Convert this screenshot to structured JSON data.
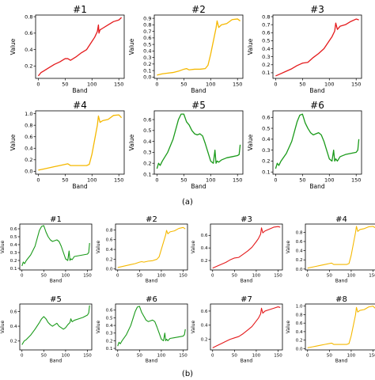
{
  "figure": {
    "label_a": "(a)",
    "label_b": "(b)"
  },
  "chart_data": [
    {
      "type": "line",
      "group": "a",
      "title": "#1",
      "xlabel": "Band",
      "ylabel": "Value",
      "xlim": [
        -5,
        160
      ],
      "ylim": [
        0.05,
        0.82
      ],
      "xticks": [
        0,
        50,
        100,
        150
      ],
      "yticks": [
        0.2,
        0.4,
        0.6,
        0.8
      ],
      "color": "#e41a1c",
      "series": [
        {
          "x": [
            0,
            5,
            10,
            20,
            30,
            40,
            50,
            55,
            60,
            70,
            80,
            90,
            100,
            105,
            110,
            112,
            113,
            115,
            120,
            130,
            140,
            150,
            155
          ],
          "y": [
            0.08,
            0.12,
            0.14,
            0.18,
            0.22,
            0.25,
            0.29,
            0.29,
            0.27,
            0.31,
            0.36,
            0.4,
            0.5,
            0.55,
            0.62,
            0.7,
            0.6,
            0.64,
            0.66,
            0.7,
            0.74,
            0.76,
            0.79
          ]
        }
      ]
    },
    {
      "type": "line",
      "group": "a",
      "title": "#2",
      "xlabel": "Band",
      "ylabel": "Value",
      "xlim": [
        -5,
        160
      ],
      "ylim": [
        -0.02,
        0.95
      ],
      "xticks": [
        0,
        50,
        100,
        150
      ],
      "yticks": [
        0.0,
        0.1,
        0.2,
        0.3,
        0.4,
        0.5,
        0.6,
        0.7,
        0.8,
        0.9
      ],
      "color": "#f5b800",
      "series": [
        {
          "x": [
            0,
            10,
            20,
            30,
            40,
            50,
            55,
            60,
            70,
            80,
            90,
            95,
            100,
            105,
            110,
            112,
            115,
            120,
            130,
            140,
            150,
            155
          ],
          "y": [
            0.03,
            0.05,
            0.06,
            0.07,
            0.09,
            0.12,
            0.13,
            0.11,
            0.12,
            0.12,
            0.13,
            0.18,
            0.35,
            0.55,
            0.75,
            0.86,
            0.76,
            0.8,
            0.82,
            0.88,
            0.89,
            0.86
          ]
        }
      ]
    },
    {
      "type": "line",
      "group": "a",
      "title": "#3",
      "xlabel": "Band",
      "ylabel": "Value",
      "xlim": [
        -5,
        160
      ],
      "ylim": [
        0.03,
        0.82
      ],
      "xticks": [
        0,
        50,
        100,
        150
      ],
      "yticks": [
        0.1,
        0.2,
        0.3,
        0.4,
        0.5,
        0.6,
        0.7,
        0.8
      ],
      "color": "#e41a1c",
      "series": [
        {
          "x": [
            0,
            10,
            20,
            30,
            40,
            50,
            60,
            70,
            80,
            90,
            100,
            105,
            110,
            112,
            115,
            120,
            130,
            140,
            150,
            155
          ],
          "y": [
            0.06,
            0.09,
            0.12,
            0.15,
            0.19,
            0.22,
            0.23,
            0.29,
            0.34,
            0.4,
            0.5,
            0.55,
            0.62,
            0.72,
            0.64,
            0.68,
            0.7,
            0.74,
            0.77,
            0.76
          ]
        }
      ]
    },
    {
      "type": "line",
      "group": "a",
      "title": "#4",
      "xlabel": "Band",
      "ylabel": "Value",
      "xlim": [
        -5,
        160
      ],
      "ylim": [
        -0.05,
        1.05
      ],
      "xticks": [
        0,
        50,
        100,
        150
      ],
      "yticks": [
        0.0,
        0.2,
        0.4,
        0.6,
        0.8,
        1.0
      ],
      "color": "#f5b800",
      "series": [
        {
          "x": [
            0,
            10,
            20,
            30,
            40,
            50,
            55,
            60,
            70,
            80,
            90,
            95,
            100,
            105,
            110,
            112,
            115,
            120,
            130,
            140,
            150,
            155
          ],
          "y": [
            0.02,
            0.04,
            0.06,
            0.08,
            0.1,
            0.12,
            0.13,
            0.1,
            0.1,
            0.1,
            0.1,
            0.12,
            0.3,
            0.55,
            0.8,
            0.96,
            0.85,
            0.88,
            0.9,
            0.97,
            0.98,
            0.93
          ]
        }
      ]
    },
    {
      "type": "line",
      "group": "a",
      "title": "#5",
      "xlabel": "Band",
      "ylabel": "Value",
      "xlim": [
        -5,
        160
      ],
      "ylim": [
        0.1,
        0.68
      ],
      "xticks": [
        0,
        50,
        100,
        150
      ],
      "yticks": [
        0.1,
        0.2,
        0.3,
        0.4,
        0.5,
        0.6
      ],
      "color": "#1a9a1a",
      "series": [
        {
          "x": [
            0,
            3,
            6,
            10,
            20,
            30,
            40,
            45,
            50,
            55,
            60,
            65,
            70,
            75,
            80,
            85,
            90,
            95,
            100,
            105,
            108,
            110,
            112,
            115,
            120,
            130,
            140,
            150,
            153,
            155
          ],
          "y": [
            0.15,
            0.2,
            0.18,
            0.22,
            0.3,
            0.42,
            0.6,
            0.65,
            0.65,
            0.58,
            0.55,
            0.5,
            0.47,
            0.46,
            0.47,
            0.45,
            0.38,
            0.3,
            0.22,
            0.2,
            0.32,
            0.2,
            0.22,
            0.21,
            0.23,
            0.25,
            0.26,
            0.27,
            0.28,
            0.37
          ]
        }
      ]
    },
    {
      "type": "line",
      "group": "a",
      "title": "#6",
      "xlabel": "Band",
      "ylabel": "Value",
      "xlim": [
        -5,
        160
      ],
      "ylim": [
        0.08,
        0.66
      ],
      "xticks": [
        0,
        50,
        100,
        150
      ],
      "yticks": [
        0.1,
        0.2,
        0.3,
        0.4,
        0.5,
        0.6
      ],
      "color": "#1a9a1a",
      "series": [
        {
          "x": [
            0,
            3,
            6,
            10,
            20,
            30,
            40,
            45,
            50,
            55,
            60,
            65,
            70,
            75,
            80,
            85,
            90,
            95,
            100,
            105,
            108,
            110,
            112,
            115,
            120,
            130,
            140,
            150,
            153,
            155
          ],
          "y": [
            0.13,
            0.18,
            0.16,
            0.2,
            0.27,
            0.38,
            0.56,
            0.62,
            0.63,
            0.55,
            0.5,
            0.46,
            0.44,
            0.45,
            0.46,
            0.44,
            0.38,
            0.3,
            0.22,
            0.2,
            0.3,
            0.2,
            0.22,
            0.2,
            0.24,
            0.26,
            0.27,
            0.28,
            0.3,
            0.4
          ]
        }
      ]
    },
    {
      "type": "line",
      "group": "b",
      "title": "#1",
      "xlabel": "Band",
      "ylabel": "Value",
      "xlim": [
        -5,
        160
      ],
      "ylim": [
        0.08,
        0.66
      ],
      "xticks": [
        0,
        50,
        100,
        150
      ],
      "yticks": [
        0.1,
        0.2,
        0.3,
        0.4,
        0.5,
        0.6
      ],
      "color": "#1a9a1a",
      "series": [
        {
          "x": [
            0,
            3,
            6,
            10,
            20,
            30,
            40,
            45,
            50,
            55,
            60,
            65,
            70,
            75,
            80,
            85,
            90,
            95,
            100,
            105,
            108,
            110,
            112,
            115,
            120,
            130,
            140,
            150,
            153,
            155
          ],
          "y": [
            0.13,
            0.18,
            0.16,
            0.2,
            0.27,
            0.38,
            0.58,
            0.63,
            0.64,
            0.56,
            0.5,
            0.46,
            0.44,
            0.45,
            0.46,
            0.44,
            0.38,
            0.3,
            0.22,
            0.2,
            0.32,
            0.2,
            0.22,
            0.21,
            0.25,
            0.26,
            0.27,
            0.28,
            0.3,
            0.42
          ]
        }
      ]
    },
    {
      "type": "line",
      "group": "b",
      "title": "#2",
      "xlabel": "Band",
      "ylabel": "Value",
      "xlim": [
        -5,
        160
      ],
      "ylim": [
        -0.02,
        0.92
      ],
      "xticks": [
        0,
        50,
        100,
        150
      ],
      "yticks": [
        0.0,
        0.2,
        0.4,
        0.6,
        0.8
      ],
      "color": "#f5b800",
      "series": [
        {
          "x": [
            0,
            10,
            20,
            30,
            40,
            50,
            55,
            60,
            70,
            80,
            90,
            95,
            100,
            105,
            110,
            112,
            115,
            120,
            130,
            140,
            150,
            155
          ],
          "y": [
            0.03,
            0.05,
            0.07,
            0.09,
            0.11,
            0.14,
            0.15,
            0.14,
            0.16,
            0.17,
            0.2,
            0.25,
            0.4,
            0.55,
            0.7,
            0.79,
            0.72,
            0.76,
            0.78,
            0.83,
            0.85,
            0.82
          ]
        }
      ]
    },
    {
      "type": "line",
      "group": "b",
      "title": "#3",
      "xlabel": "Band",
      "ylabel": "Value",
      "xlim": [
        -5,
        160
      ],
      "ylim": [
        0.05,
        0.78
      ],
      "xticks": [
        0,
        50,
        100,
        150
      ],
      "yticks": [
        0.2,
        0.4,
        0.6
      ],
      "color": "#e41a1c",
      "series": [
        {
          "x": [
            0,
            10,
            20,
            30,
            40,
            50,
            60,
            70,
            80,
            90,
            100,
            105,
            110,
            112,
            115,
            120,
            130,
            140,
            150,
            155
          ],
          "y": [
            0.08,
            0.11,
            0.14,
            0.17,
            0.21,
            0.24,
            0.25,
            0.3,
            0.35,
            0.41,
            0.5,
            0.55,
            0.62,
            0.72,
            0.64,
            0.67,
            0.7,
            0.73,
            0.74,
            0.73
          ]
        }
      ]
    },
    {
      "type": "line",
      "group": "b",
      "title": "#4",
      "xlabel": "Band",
      "ylabel": "Value",
      "xlim": [
        -5,
        160
      ],
      "ylim": [
        -0.02,
        0.98
      ],
      "xticks": [
        0,
        50,
        100,
        150
      ],
      "yticks": [
        0.0,
        0.2,
        0.4,
        0.6,
        0.8
      ],
      "color": "#f5b800",
      "series": [
        {
          "x": [
            0,
            10,
            20,
            30,
            40,
            50,
            55,
            60,
            70,
            80,
            90,
            95,
            100,
            105,
            110,
            112,
            115,
            120,
            130,
            140,
            150,
            155
          ],
          "y": [
            0.02,
            0.04,
            0.06,
            0.08,
            0.1,
            0.12,
            0.13,
            0.1,
            0.1,
            0.1,
            0.1,
            0.12,
            0.3,
            0.55,
            0.8,
            0.93,
            0.82,
            0.86,
            0.88,
            0.92,
            0.93,
            0.9
          ]
        }
      ]
    },
    {
      "type": "line",
      "group": "b",
      "title": "#5",
      "xlabel": "Band",
      "ylabel": "Value",
      "xlim": [
        -5,
        160
      ],
      "ylim": [
        0.08,
        0.7
      ],
      "xticks": [
        0,
        50,
        100,
        150
      ],
      "yticks": [
        0.2,
        0.4,
        0.6
      ],
      "color": "#1a9a1a",
      "series": [
        {
          "x": [
            0,
            5,
            10,
            20,
            30,
            40,
            45,
            50,
            55,
            60,
            65,
            70,
            75,
            80,
            85,
            90,
            95,
            100,
            105,
            110,
            112,
            115,
            120,
            130,
            140,
            150,
            153,
            155
          ],
          "y": [
            0.15,
            0.2,
            0.22,
            0.28,
            0.36,
            0.45,
            0.5,
            0.53,
            0.5,
            0.45,
            0.42,
            0.4,
            0.42,
            0.44,
            0.4,
            0.38,
            0.36,
            0.38,
            0.42,
            0.45,
            0.5,
            0.46,
            0.48,
            0.5,
            0.52,
            0.55,
            0.58,
            0.68
          ]
        }
      ]
    },
    {
      "type": "line",
      "group": "b",
      "title": "#6",
      "xlabel": "Band",
      "ylabel": "Value",
      "xlim": [
        -5,
        160
      ],
      "ylim": [
        0.08,
        0.68
      ],
      "xticks": [
        0,
        50,
        100,
        150
      ],
      "yticks": [
        0.1,
        0.2,
        0.3,
        0.4,
        0.5,
        0.6
      ],
      "color": "#1a9a1a",
      "series": [
        {
          "x": [
            0,
            3,
            6,
            10,
            20,
            30,
            40,
            45,
            50,
            55,
            60,
            65,
            70,
            75,
            80,
            85,
            90,
            95,
            100,
            105,
            108,
            110,
            112,
            115,
            120,
            130,
            140,
            150,
            153,
            155
          ],
          "y": [
            0.13,
            0.18,
            0.16,
            0.2,
            0.28,
            0.4,
            0.58,
            0.64,
            0.65,
            0.57,
            0.52,
            0.47,
            0.45,
            0.46,
            0.47,
            0.45,
            0.38,
            0.3,
            0.22,
            0.2,
            0.3,
            0.2,
            0.22,
            0.2,
            0.23,
            0.24,
            0.25,
            0.26,
            0.28,
            0.35
          ]
        }
      ]
    },
    {
      "type": "line",
      "group": "b",
      "title": "#7",
      "xlabel": "Band",
      "ylabel": "Value",
      "xlim": [
        -5,
        160
      ],
      "ylim": [
        0.05,
        0.7
      ],
      "xticks": [
        0,
        50,
        100,
        150
      ],
      "yticks": [
        0.2,
        0.4,
        0.6
      ],
      "color": "#e41a1c",
      "series": [
        {
          "x": [
            0,
            10,
            20,
            30,
            40,
            50,
            60,
            70,
            80,
            90,
            100,
            105,
            110,
            112,
            115,
            120,
            130,
            140,
            150,
            155
          ],
          "y": [
            0.08,
            0.11,
            0.14,
            0.17,
            0.2,
            0.22,
            0.24,
            0.28,
            0.33,
            0.38,
            0.46,
            0.5,
            0.56,
            0.64,
            0.57,
            0.6,
            0.62,
            0.64,
            0.66,
            0.65
          ]
        }
      ]
    },
    {
      "type": "line",
      "group": "b",
      "title": "#8",
      "xlabel": "Band",
      "ylabel": "Value",
      "xlim": [
        -5,
        160
      ],
      "ylim": [
        -0.03,
        1.05
      ],
      "xticks": [
        0,
        50,
        100,
        150
      ],
      "yticks": [
        0.0,
        0.2,
        0.4,
        0.6,
        0.8,
        1.0
      ],
      "color": "#f5b800",
      "series": [
        {
          "x": [
            0,
            10,
            20,
            30,
            40,
            50,
            55,
            60,
            70,
            80,
            90,
            95,
            100,
            105,
            110,
            112,
            115,
            120,
            130,
            140,
            150,
            155
          ],
          "y": [
            0.02,
            0.04,
            0.06,
            0.08,
            0.1,
            0.12,
            0.13,
            0.1,
            0.1,
            0.1,
            0.1,
            0.12,
            0.3,
            0.55,
            0.8,
            0.97,
            0.86,
            0.9,
            0.92,
            0.98,
            1.0,
            0.95
          ]
        }
      ]
    }
  ]
}
